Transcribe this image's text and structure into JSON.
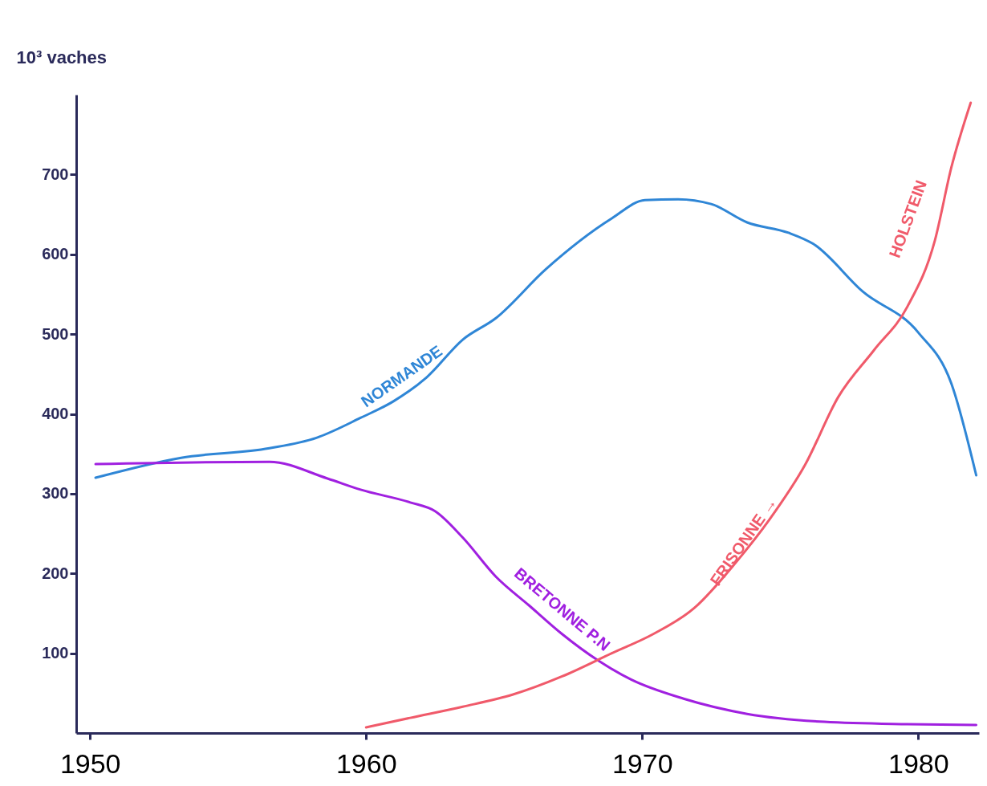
{
  "chart_data": {
    "type": "line",
    "ylabel": "10³ vaches",
    "xlim": [
      1949.5,
      1982.2
    ],
    "ylim": [
      0,
      800
    ],
    "xticks": [
      1950,
      1960,
      1970,
      1980
    ],
    "yticks": [
      100,
      200,
      300,
      400,
      500,
      600,
      700
    ],
    "grid": false,
    "legend": false,
    "marker": "none",
    "line_style": "solid",
    "series": [
      {
        "name": "NORMANDE",
        "color": "#2f86d6",
        "x": [
          1950.2,
          1953.3,
          1956.5,
          1958.2,
          1959.8,
          1961.0,
          1962.2,
          1963.5,
          1964.7,
          1966.5,
          1968.9,
          1970.1,
          1971.3,
          1972.5,
          1973.8,
          1975.3,
          1976.2,
          1978.0,
          1980.0,
          1981.2,
          1982.1
        ],
        "values": [
          320,
          345,
          357,
          370,
          395,
          416,
          446,
          493,
          520,
          581,
          645,
          668,
          669,
          663,
          640,
          627,
          613,
          553,
          502,
          438,
          323
        ]
      },
      {
        "name": "BRETONNE P.N",
        "color": "#a020e0",
        "x": [
          1950.2,
          1956.5,
          1958.6,
          1959.8,
          1961.6,
          1962.5,
          1963.5,
          1964.7,
          1965.9,
          1967.1,
          1968.4,
          1969.6,
          1971.5,
          1973.8,
          1976.6,
          1979.6,
          1982.1
        ],
        "values": [
          337,
          340,
          319,
          305,
          289,
          278,
          245,
          196,
          160,
          124,
          91,
          67,
          43,
          24,
          14,
          11,
          10
        ]
      },
      {
        "name": "FRISONNE →",
        "color": "#f05a6a",
        "x": [
          1960.0,
          1961.6,
          1963.5,
          1965.3,
          1967.1,
          1968.9,
          1970.4,
          1971.9,
          1973.4,
          1974.6,
          1975.9,
          1977.1,
          1978.4,
          1979.6,
          1980.6,
          1981.2,
          1981.9
        ],
        "values": [
          7,
          19,
          33,
          48,
          71,
          100,
          124,
          157,
          214,
          267,
          336,
          421,
          480,
          534,
          617,
          709,
          790
        ]
      }
    ],
    "annotations": [
      "HOLSTEIN"
    ]
  }
}
